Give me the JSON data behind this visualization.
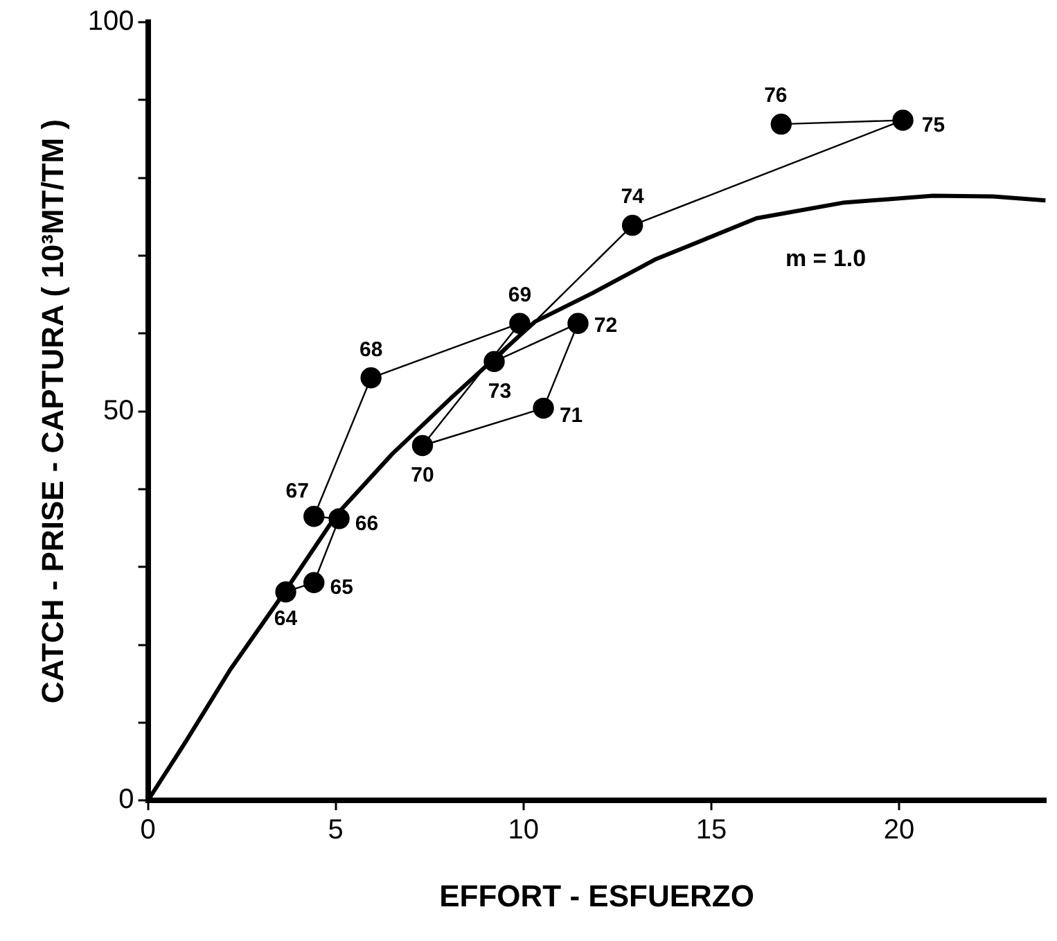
{
  "chart_data": {
    "type": "line",
    "xlabel": "EFFORT - ESFUERZO",
    "ylabel": "CATCH - PRISE - CAPTURA ( 10³MT/TM )",
    "xlim": [
      0,
      23.9
    ],
    "ylim": [
      0,
      100
    ],
    "xticks": [
      0,
      5,
      10,
      15,
      20
    ],
    "yticks": [
      0,
      {
        "value": 10,
        "label": null
      },
      {
        "value": 20,
        "label": null
      },
      {
        "value": 30,
        "label": null
      },
      {
        "value": 40,
        "label": null
      },
      50,
      {
        "value": 60,
        "label": null
      },
      {
        "value": 70,
        "label": null
      },
      {
        "value": 80,
        "label": null
      },
      {
        "value": 90,
        "label": null
      },
      100
    ],
    "grid": false,
    "legend": false,
    "series": [
      {
        "marker": "circle",
        "color": "#000000",
        "x": [
          3.67,
          4.42,
          5.09,
          4.42,
          5.94,
          9.9,
          7.31,
          10.53,
          11.45,
          9.22,
          12.9,
          20.1,
          16.86
        ],
        "values": [
          26.8,
          28.0,
          36.2,
          36.5,
          54.3,
          61.3,
          45.6,
          50.4,
          61.3,
          56.4,
          73.9,
          87.4,
          86.9
        ]
      },
      {
        "marker": "none",
        "color": "#000000",
        "x": [
          0,
          1,
          2.19,
          3.6,
          5.02,
          6.5,
          8.09,
          10.3,
          11.84,
          13.5,
          16.2,
          18.5,
          20.9,
          22.5,
          23.9
        ],
        "values": [
          0,
          7.5,
          16.8,
          26.5,
          36.7,
          44.5,
          51.8,
          61.5,
          65.2,
          69.5,
          74.8,
          76.8,
          77.7,
          77.6,
          77.1
        ]
      }
    ],
    "annotations": [
      {
        "text": "64",
        "x": 3.67,
        "y": 26.8
      },
      {
        "text": "65",
        "x": 4.42,
        "y": 28.0
      },
      {
        "text": "66",
        "x": 5.09,
        "y": 36.2
      },
      {
        "text": "67",
        "x": 4.42,
        "y": 36.5
      },
      {
        "text": "68",
        "x": 5.94,
        "y": 54.3
      },
      {
        "text": "69",
        "x": 9.9,
        "y": 61.3
      },
      {
        "text": "70",
        "x": 7.31,
        "y": 45.6
      },
      {
        "text": "71",
        "x": 10.53,
        "y": 50.4
      },
      {
        "text": "72",
        "x": 11.45,
        "y": 61.3
      },
      {
        "text": "73",
        "x": 9.22,
        "y": 56.4
      },
      {
        "text": "74",
        "x": 12.9,
        "y": 73.9
      },
      {
        "text": "75",
        "x": 20.1,
        "y": 87.4
      },
      {
        "text": "76",
        "x": 16.86,
        "y": 86.9
      },
      "m = 1.0"
    ]
  }
}
